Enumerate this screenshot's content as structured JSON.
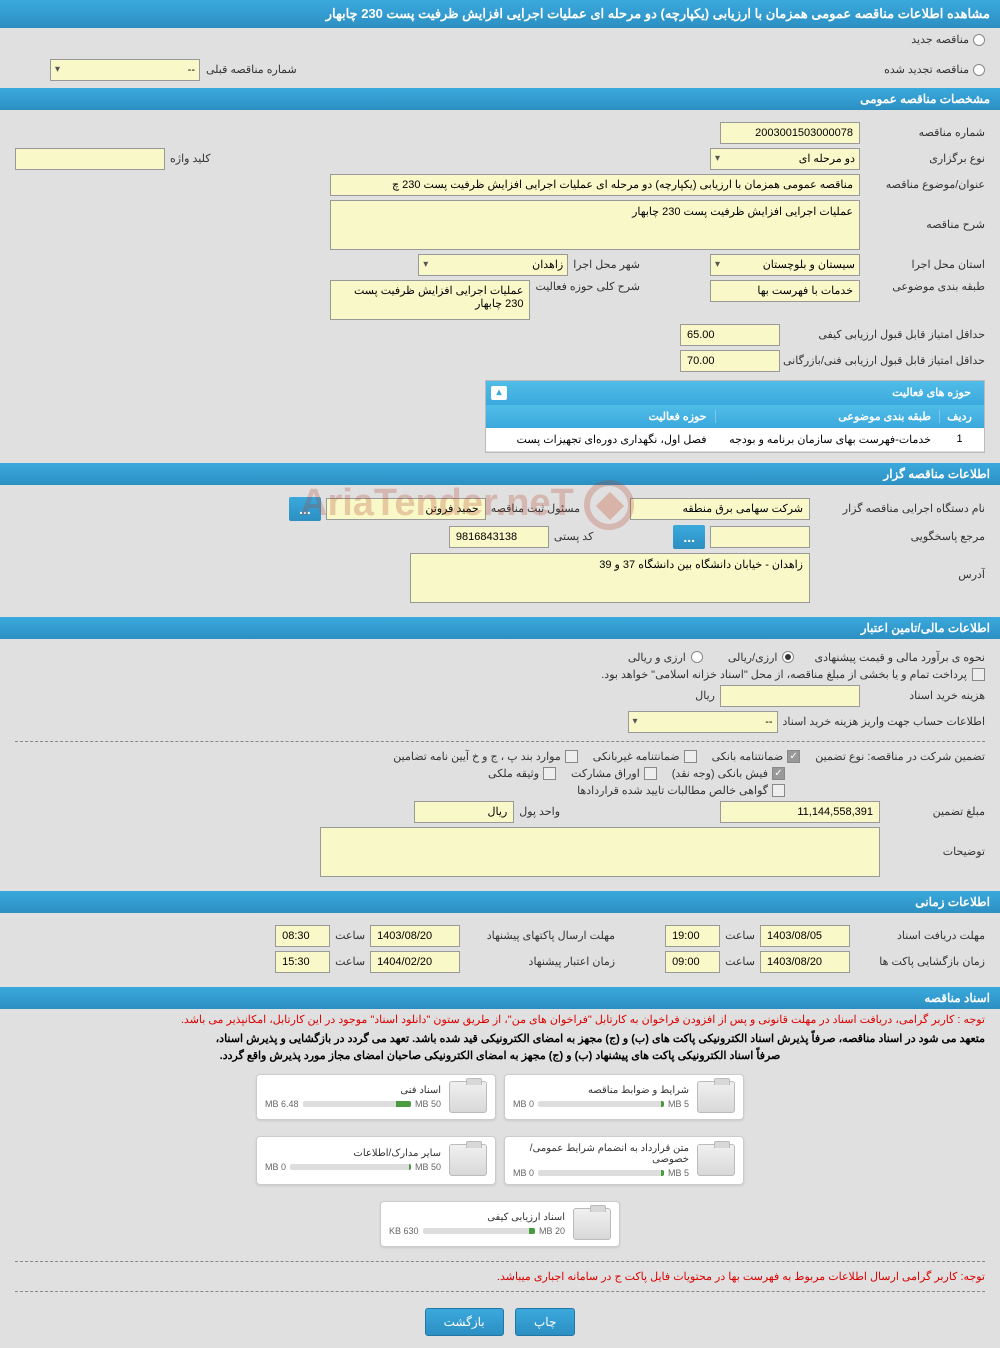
{
  "header": {
    "title": "مشاهده اطلاعات مناقصه عمومی همزمان با ارزیابی (یکپارچه) دو مرحله ای عملیات اجرایی افزایش ظرفیت پست 230 چابهار"
  },
  "tender_type": {
    "new_label": "مناقصه جدید",
    "renewed_label": "مناقصه تجدید شده",
    "prev_number_label": "شماره مناقصه قبلی",
    "prev_number_value": "--"
  },
  "sections": {
    "general": "مشخصات مناقصه عمومی",
    "activity_fields": "حوزه های فعالیت",
    "organizer": "اطلاعات مناقصه گزار",
    "financial": "اطلاعات مالی/تامین اعتبار",
    "timing": "اطلاعات زمانی",
    "documents": "اسناد مناقصه"
  },
  "general": {
    "tender_no_label": "شماره مناقصه",
    "tender_no": "2003001503000078",
    "holding_type_label": "نوع برگزاری",
    "holding_type": "دو مرحله ای",
    "keyword_label": "کلید واژه",
    "keyword": "",
    "subject_label": "عنوان/موضوع مناقصه",
    "subject": "مناقصه عمومی همزمان با ارزیابی (یکپارچه) دو مرحله ای عملیات اجرایی افزایش ظرفیت پست 230 چ",
    "description_label": "شرح مناقصه",
    "description": "عملیات اجرایی افزایش ظرفیت پست 230 چابهار",
    "province_label": "استان محل اجرا",
    "province": "سیستان و بلوچستان",
    "city_label": "شهر محل اجرا",
    "city": "زاهدان",
    "category_label": "طبقه بندی موضوعی",
    "category": "خدمات با فهرست بها",
    "activity_desc_label": "شرح کلی حوزه فعالیت",
    "activity_desc": "عملیات اجرایی افزایش ظرفیت پست 230 چابهار",
    "qual_score_label": "حداقل امتیاز قابل قبول ارزیابی کیفی",
    "qual_score": "65.00",
    "tech_score_label": "حداقل امتیاز قابل قبول ارزیابی فنی/بازرگانی",
    "tech_score": "70.00"
  },
  "activity_table": {
    "col_idx": "ردیف",
    "col_category": "طبقه بندی موضوعی",
    "col_field": "حوزه فعالیت",
    "row": {
      "idx": "1",
      "category": "خدمات-فهرست بهای سازمان برنامه و بودجه",
      "field": "فصل اول، نگهداری دوره‌ای تجهیزات پست"
    }
  },
  "organizer": {
    "agency_label": "نام دستگاه اجرایی مناقصه گزار",
    "agency": "شرکت سهامی برق منطقه",
    "registrar_label": "مسئول ثبت مناقصه",
    "registrar": "حمید فروتن",
    "contact_label": "مرجع پاسخگویی",
    "contact": "",
    "postal_label": "کد پستی",
    "postal": "9816843138",
    "address_label": "آدرس",
    "address": "زاهدان - خیابان دانشگاه بین دانشگاه 37 و 39"
  },
  "financial": {
    "estimate_label": "نحوه ی برآورد مالی و قیمت پیشنهادی",
    "currency_rial": "ارزی/ریالی",
    "currency_foreign": "ارزی و ریالی",
    "treasury_note": "پرداخت تمام و یا بخشی از مبلغ مناقصه، از محل \"اسناد خزانه اسلامی\" خواهد بود.",
    "doc_cost_label": "هزینه خرید اسناد",
    "doc_cost": "",
    "rial_unit": "ریال",
    "deposit_account_label": "اطلاعات حساب جهت واریز هزینه خرید اسناد",
    "deposit_account": "--",
    "guarantee_label": "تضمین شرکت در مناقصه:   نوع تضمین",
    "bank_guarantee": "ضمانتنامه بانکی",
    "nonbank_guarantee": "ضمانتنامه غیربانکی",
    "bylaw_items": "موارد بند پ ، ج و خ آیین نامه تضامین",
    "bank_receipt": "فیش بانکی (وجه نقد)",
    "securities": "اوراق مشارکت",
    "property_pledge": "وثیقه ملکی",
    "contract_receivables": "گواهی خالص مطالبات تایید شده قراردادها",
    "guarantee_amount_label": "مبلغ تضمین",
    "guarantee_amount": "11,144,558,391",
    "currency_unit_label": "واحد پول",
    "currency_unit": "ریال",
    "notes_label": "توضیحات",
    "notes": ""
  },
  "timing": {
    "doc_deadline_label": "مهلت دریافت اسناد",
    "doc_deadline_date": "1403/08/05",
    "doc_deadline_time": "19:00",
    "time_label": "ساعت",
    "bid_deadline_label": "مهلت ارسال پاکتهای پیشنهاد",
    "bid_deadline_date": "1403/08/20",
    "bid_deadline_time": "08:30",
    "opening_label": "زمان بازگشایی پاکت ها",
    "opening_date": "1403/08/20",
    "opening_time": "09:00",
    "validity_label": "زمان اعتبار پیشنهاد",
    "validity_date": "1404/02/20",
    "validity_time": "15:30"
  },
  "warnings": {
    "w1": "توجه : کاربر گرامی، دریافت اسناد در مهلت قانونی و پس از افزودن فراخوان به کارتابل \"فراخوان های من\"، از طریق ستون \"دانلود اسناد\" موجود در این کارتابل، امکانپذیر می باشد.",
    "w2": "متعهد می شود در اسناد مناقصه، صرفاً پذیرش اسناد الکترونیکی پاکت های (ب) و (ج) مجهز به امضای الکترونیکی قید شده باشد. تعهد می گردد در بازگشایی و پذیرش اسناد،",
    "w3": "صرفاً اسناد الکترونیکی پاکت های پیشنهاد (ب) و (ج) مجهز به امضای الکترونیکی صاحبان امضای مجاز مورد پذیرش واقع گردد.",
    "w4": "توجه: کاربر گرامی ارسال اطلاعات مربوط به فهرست بها در محتویات فایل پاکت ج در سامانه اجباری میباشد."
  },
  "files": [
    {
      "title": "شرایط و ضوابط مناقصه",
      "used": "0 MB",
      "total": "5 MB",
      "pct": 2
    },
    {
      "title": "اسناد فنی",
      "used": "6.48 MB",
      "total": "50 MB",
      "pct": 14
    },
    {
      "title": "متن قرارداد به انضمام شرایط عمومی/خصوصی",
      "used": "0 MB",
      "total": "5 MB",
      "pct": 2
    },
    {
      "title": "سایر مدارک/اطلاعات",
      "used": "0 MB",
      "total": "50 MB",
      "pct": 2
    },
    {
      "title": "اسناد ارزیابی کیفی",
      "used": "630 KB",
      "total": "20 MB",
      "pct": 5
    }
  ],
  "buttons": {
    "print": "چاپ",
    "back": "بازگشت",
    "more": "..."
  },
  "colors": {
    "header_bg": "#3ba9dd",
    "field_bg": "#f9f8c8",
    "page_bg": "#e0e0e0",
    "warning": "#d00"
  }
}
